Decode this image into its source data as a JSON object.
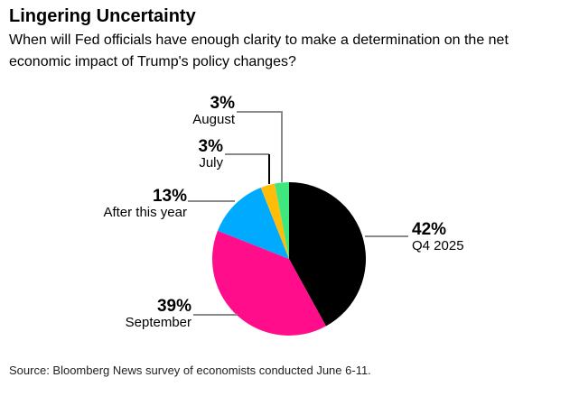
{
  "header": {
    "title": "Lingering Uncertainty",
    "subtitle": "When will Fed officials have enough clarity to make a determination on the net economic impact of Trump's policy changes?"
  },
  "chart_data": {
    "type": "pie",
    "title": "Lingering Uncertainty",
    "question": "When will Fed officials have enough clarity to make a determination on the net economic impact of Trump's policy changes?",
    "unit": "%",
    "start_angle_deg": -90,
    "direction": "clockwise",
    "legend_position": "callout-labels",
    "leader_line_color": "#8A8A8A",
    "slices": [
      {
        "label": "Q4 2025",
        "value": 42,
        "pct_label": "42%",
        "color": "#000000"
      },
      {
        "label": "September",
        "value": 39,
        "pct_label": "39%",
        "color": "#FF0D8A"
      },
      {
        "label": "After this year",
        "value": 13,
        "pct_label": "13%",
        "color": "#00AAFF"
      },
      {
        "label": "July",
        "value": 3,
        "pct_label": "3%",
        "color": "#FFBD0A"
      },
      {
        "label": "August",
        "value": 3,
        "pct_label": "3%",
        "color": "#3FE87F"
      }
    ]
  },
  "source": "Source: Bloomberg News survey of economists conducted June 6-11."
}
